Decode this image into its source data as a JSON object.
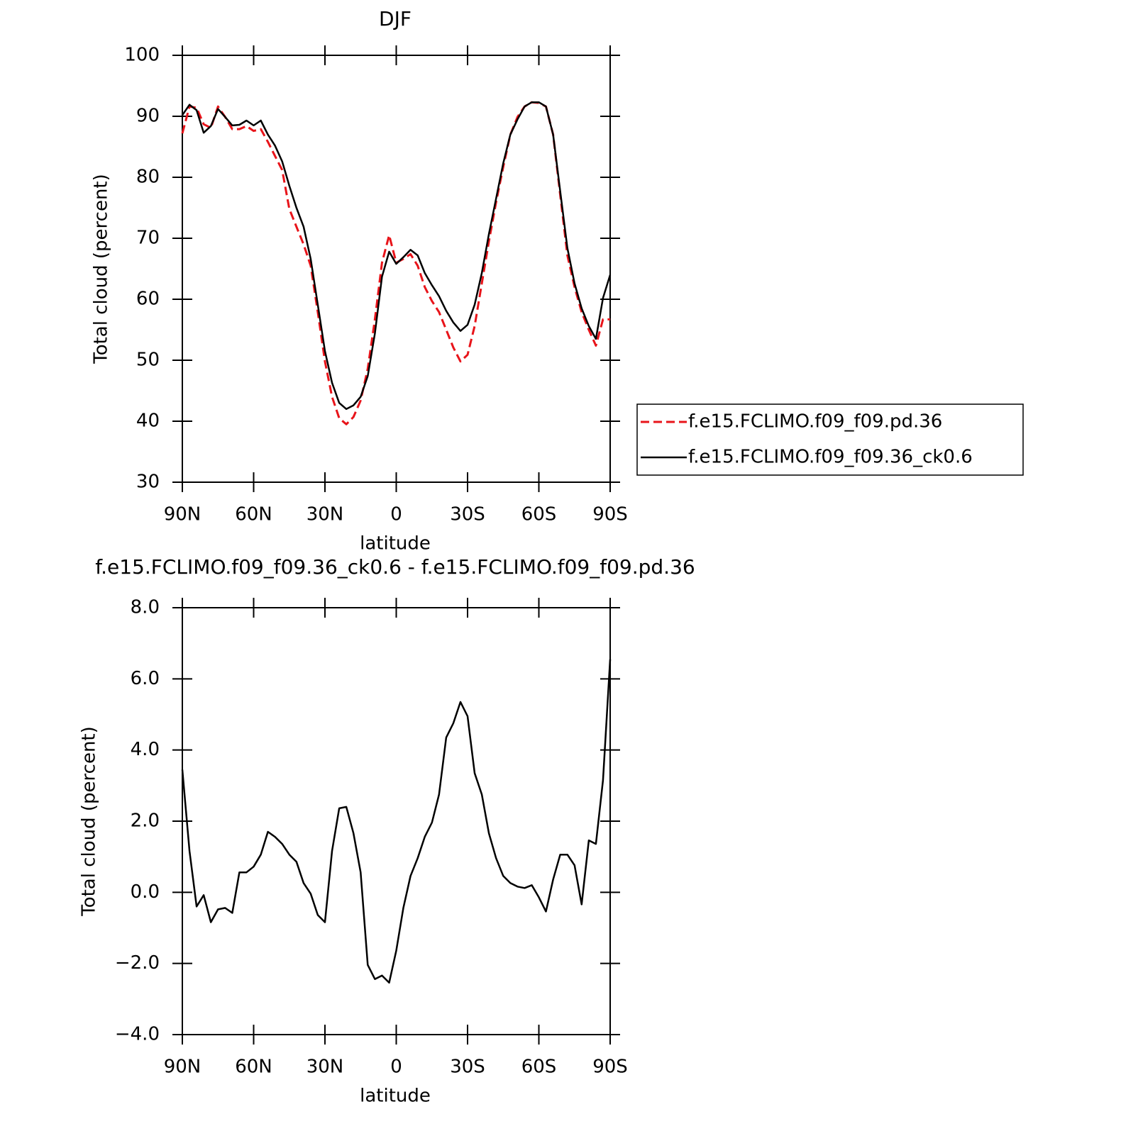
{
  "chart_data": [
    {
      "type": "line",
      "title": "DJF",
      "x_label": "latitude",
      "y_label": "Total cloud (percent)",
      "x": [
        90,
        87,
        84,
        81,
        78,
        75,
        72,
        69,
        66,
        63,
        60,
        57,
        54,
        51,
        48,
        45,
        42,
        39,
        36,
        33,
        30,
        27,
        24,
        21,
        18,
        15,
        12,
        9,
        6,
        3,
        0,
        -3,
        -6,
        -9,
        -12,
        -15,
        -18,
        -21,
        -24,
        -27,
        -30,
        -33,
        -36,
        -39,
        -42,
        -45,
        -48,
        -51,
        -54,
        -57,
        -60,
        -63,
        -66,
        -69,
        -72,
        -75,
        -78,
        -81,
        -84,
        -87,
        -90
      ],
      "xlim": [
        90,
        -90
      ],
      "xticks": [
        {
          "value": 90,
          "label": "90N"
        },
        {
          "value": 60,
          "label": "60N"
        },
        {
          "value": 30,
          "label": "30N"
        },
        0,
        {
          "value": -30,
          "label": "30S"
        },
        {
          "value": -60,
          "label": "60S"
        },
        {
          "value": -90,
          "label": "90S"
        }
      ],
      "ylim": [
        30,
        100
      ],
      "yticks": [
        30,
        40,
        50,
        60,
        70,
        80,
        90,
        100
      ],
      "legend": "right",
      "series": [
        {
          "name": "f.e15.FCLIMO.f09_f09.pd.36",
          "color": "#e8141a",
          "linestyle": "dashed",
          "values": [
            87.2,
            91.6,
            91.4,
            88.7,
            88.1,
            91.6,
            89.9,
            87.9,
            87.9,
            88.4,
            87.6,
            87.9,
            85.8,
            83.5,
            81.2,
            74.8,
            71.9,
            69.0,
            65.5,
            57.9,
            49.8,
            44.0,
            40.5,
            39.5,
            40.7,
            43.4,
            48.6,
            56.7,
            66.0,
            70.5,
            66.0,
            66.6,
            67.4,
            65.5,
            62.0,
            59.7,
            57.9,
            55.0,
            52.1,
            49.8,
            50.9,
            55.6,
            62.6,
            69.5,
            75.9,
            81.7,
            87.0,
            89.9,
            91.6,
            92.3,
            92.2,
            91.6,
            87.0,
            77.1,
            67.2,
            62.0,
            57.9,
            55.0,
            52.4,
            56.7,
            56.7
          ]
        },
        {
          "name": "f.e15.FCLIMO.f09_f09.36_ck0.6",
          "color": "#000000",
          "linestyle": "solid",
          "values": [
            90.2,
            91.9,
            91.0,
            87.3,
            88.4,
            91.2,
            89.9,
            88.5,
            88.6,
            89.3,
            88.5,
            89.3,
            87.0,
            85.2,
            82.6,
            78.6,
            75.0,
            71.9,
            66.6,
            59.1,
            51.5,
            46.3,
            43.0,
            42.0,
            42.6,
            44.0,
            47.4,
            54.4,
            63.7,
            67.8,
            65.8,
            66.9,
            68.1,
            67.2,
            64.3,
            62.3,
            60.5,
            58.1,
            56.2,
            54.8,
            55.8,
            59.1,
            64.3,
            70.7,
            76.5,
            82.3,
            87.0,
            89.5,
            91.6,
            92.3,
            92.3,
            91.6,
            87.0,
            77.7,
            68.4,
            62.6,
            58.5,
            55.6,
            53.5,
            60.2,
            64.0
          ]
        }
      ]
    },
    {
      "type": "line",
      "title": "f.e15.FCLIMO.f09_f09.36_ck0.6 - f.e15.FCLIMO.f09_f09.pd.36",
      "x_label": "latitude",
      "y_label": "Total cloud (percent)",
      "x": [
        90,
        87,
        84,
        81,
        78,
        75,
        72,
        69,
        66,
        63,
        60,
        57,
        54,
        51,
        48,
        45,
        42,
        39,
        36,
        33,
        30,
        27,
        24,
        21,
        18,
        15,
        12,
        9,
        6,
        3,
        0,
        -3,
        -6,
        -9,
        -12,
        -15,
        -18,
        -21,
        -24,
        -27,
        -30,
        -33,
        -36,
        -39,
        -42,
        -45,
        -48,
        -51,
        -54,
        -57,
        -60,
        -63,
        -66,
        -69,
        -72,
        -75,
        -78,
        -81,
        -84,
        -87,
        -90
      ],
      "xlim": [
        90,
        -90
      ],
      "xticks": [
        {
          "value": 90,
          "label": "90N"
        },
        {
          "value": 60,
          "label": "60N"
        },
        {
          "value": 30,
          "label": "30N"
        },
        0,
        {
          "value": -30,
          "label": "30S"
        },
        {
          "value": -60,
          "label": "60S"
        },
        {
          "value": -90,
          "label": "90S"
        }
      ],
      "ylim": [
        -4,
        8
      ],
      "yticks": [
        {
          "value": -4,
          "label": "−4.0"
        },
        {
          "value": -2,
          "label": "−2.0"
        },
        {
          "value": 0,
          "label": "0.0"
        },
        {
          "value": 2,
          "label": "2.0"
        },
        {
          "value": 4,
          "label": "4.0"
        },
        {
          "value": 6,
          "label": "6.0"
        },
        {
          "value": 8,
          "label": "8.0"
        }
      ],
      "series": [
        {
          "color": "#000000",
          "linestyle": "solid",
          "values": [
            3.45,
            1.16,
            -0.4,
            -0.08,
            -0.84,
            -0.48,
            -0.44,
            -0.58,
            0.56,
            0.56,
            0.72,
            1.06,
            1.7,
            1.56,
            1.36,
            1.06,
            0.86,
            0.26,
            -0.04,
            -0.64,
            -0.84,
            1.16,
            2.36,
            2.4,
            1.66,
            0.56,
            -2.04,
            -2.44,
            -2.34,
            -2.54,
            -1.64,
            -0.44,
            0.46,
            0.96,
            1.56,
            1.96,
            2.75,
            4.35,
            4.75,
            5.35,
            4.95,
            3.35,
            2.75,
            1.66,
            0.96,
            0.46,
            0.26,
            0.16,
            0.12,
            0.2,
            -0.14,
            -0.54,
            0.36,
            1.06,
            1.06,
            0.76,
            -0.34,
            1.46,
            1.36,
            3.15,
            6.55
          ]
        }
      ]
    }
  ]
}
